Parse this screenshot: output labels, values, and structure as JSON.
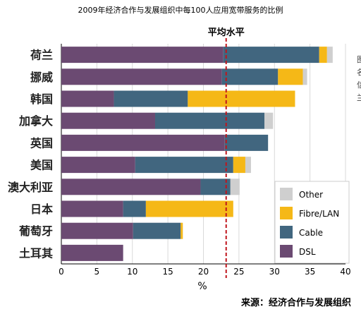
{
  "chart_data": {
    "type": "bar",
    "orientation": "horizontal",
    "stacked": true,
    "title": "2009年经济合作与发展组织中每100人应用宽带服务的比例",
    "xlabel": "%",
    "xlim": [
      0,
      40
    ],
    "xticks": [
      0,
      5,
      10,
      15,
      20,
      25,
      30,
      35,
      40
    ],
    "grid": true,
    "categories": [
      "荷兰",
      "挪威",
      "韩国",
      "加拿大",
      "英国",
      "美国",
      "澳大利亚",
      "日本",
      "葡萄牙",
      "土耳其"
    ],
    "series": [
      {
        "name": "DSL",
        "color": "#6b4a72",
        "values": [
          22.8,
          22.6,
          7.4,
          13.2,
          23.0,
          10.4,
          19.6,
          8.7,
          10.1,
          8.7
        ]
      },
      {
        "name": "Cable",
        "color": "#41667f",
        "values": [
          13.5,
          7.9,
          10.4,
          15.4,
          6.1,
          13.8,
          4.2,
          3.2,
          6.7,
          0
        ]
      },
      {
        "name": "Fibre/LAN",
        "color": "#f5b817",
        "values": [
          1.1,
          3.5,
          15.1,
          0,
          0,
          1.7,
          0,
          12.3,
          0.3,
          0
        ]
      },
      {
        "name": "Other",
        "color": "#cfcfcf",
        "values": [
          0.8,
          0.6,
          0,
          1.2,
          0,
          0.8,
          1.3,
          0,
          0,
          0
        ]
      }
    ],
    "reference_line": {
      "label": "平均水平",
      "value": 23.2,
      "color": "#c0161d"
    },
    "legend": {
      "position": "bottom-right",
      "order": [
        "Other",
        "Fibre/LAN",
        "Cable",
        "DSL"
      ]
    }
  },
  "source_text": "来源：经济合作与发展组织",
  "right_fragments": [
    "图",
    "名",
    "信",
    "兰"
  ]
}
